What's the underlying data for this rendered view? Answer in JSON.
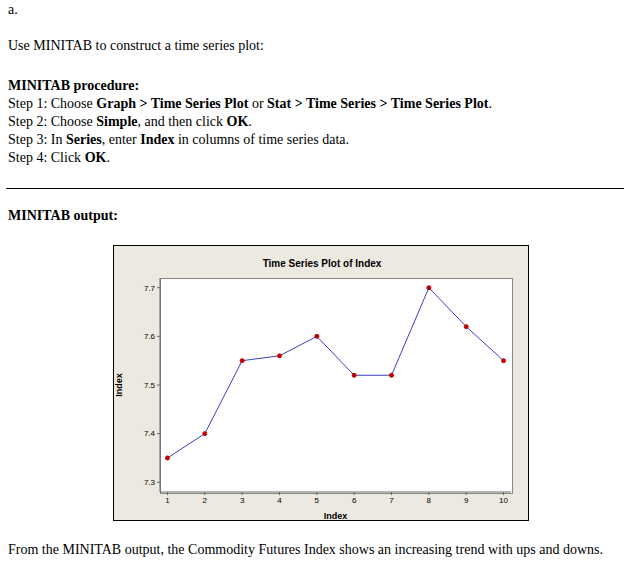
{
  "document": {
    "label": "a.",
    "intro": "Use MINITAB to construct a time series plot:",
    "procedure_heading": "MINITAB procedure:",
    "steps": [
      [
        {
          "t": "Step 1: Choose ",
          "b": false
        },
        {
          "t": "Graph > Time Series Plot",
          "b": true
        },
        {
          "t": " or ",
          "b": false
        },
        {
          "t": "Stat > Time Series > Time Series Plot",
          "b": true
        },
        {
          "t": ".",
          "b": false
        }
      ],
      [
        {
          "t": "Step 2: Choose ",
          "b": false
        },
        {
          "t": "Simple",
          "b": true
        },
        {
          "t": ", and then click ",
          "b": false
        },
        {
          "t": "OK",
          "b": true
        },
        {
          "t": ".",
          "b": false
        }
      ],
      [
        {
          "t": "Step 3: In ",
          "b": false
        },
        {
          "t": "Series",
          "b": true
        },
        {
          "t": ", enter ",
          "b": false
        },
        {
          "t": "Index",
          "b": true
        },
        {
          "t": " in columns of time series data.",
          "b": false
        }
      ],
      [
        {
          "t": "Step 4: Click ",
          "b": false
        },
        {
          "t": "OK",
          "b": true
        },
        {
          "t": ".",
          "b": false
        }
      ]
    ],
    "output_heading": "MINITAB output:",
    "conclusion": "From the MINITAB output, the Commodity Futures Index shows an increasing trend with ups and downs."
  },
  "chart_data": {
    "type": "line",
    "title": "Time Series Plot of Index",
    "x_label": "Index",
    "y_label": "Index",
    "x": [
      1,
      2,
      3,
      4,
      5,
      6,
      7,
      8,
      9,
      10
    ],
    "values": [
      7.35,
      7.4,
      7.55,
      7.56,
      7.6,
      7.52,
      7.52,
      7.7,
      7.62,
      7.55
    ],
    "color": "#3f3fbf",
    "marker": "circle",
    "xlim": [
      0.8,
      10.2
    ],
    "xticks": [
      1,
      2,
      3,
      4,
      5,
      6,
      7,
      8,
      9,
      10
    ],
    "ylim": [
      7.28,
      7.72
    ],
    "yticks": [
      7.3,
      7.4,
      7.5,
      7.6,
      7.7
    ],
    "grid": false
  }
}
